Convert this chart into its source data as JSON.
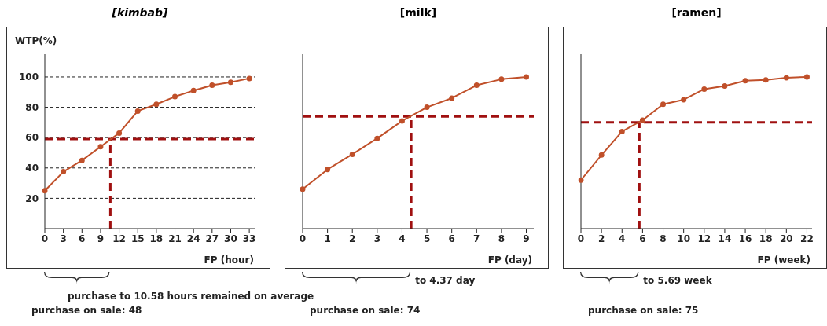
{
  "chart_data": [
    {
      "type": "line",
      "title": "[kimbab]",
      "xlabel": "FP (hour)",
      "ylabel": "WTP(%)",
      "x": [
        0,
        3,
        6,
        9,
        12,
        15,
        18,
        21,
        24,
        27,
        30,
        33
      ],
      "series": [
        {
          "color": "#c0502a",
          "values": [
            25,
            37.5,
            45,
            54,
            63,
            77.5,
            82,
            87,
            91,
            94.5,
            96.5,
            99
          ]
        }
      ],
      "xlim": [
        0,
        34
      ],
      "xticks": [
        0,
        3,
        6,
        9,
        12,
        15,
        18,
        21,
        24,
        27,
        30,
        33
      ],
      "ylim": [
        0,
        115
      ],
      "yticks": [
        20,
        40,
        60,
        80,
        100
      ],
      "grid": "y",
      "marker": "circle",
      "line_style": "solid",
      "ref_lines": [
        {
          "axis": "y",
          "value": 59,
          "color": "#a01010",
          "line_style": "dashed"
        },
        {
          "axis": "x",
          "value": 10.58,
          "color": "#a01010",
          "line_style": "dashed"
        }
      ],
      "annotations": [
        "purchase to 10.58 hours remained on average",
        "purchase on sale: 48"
      ]
    },
    {
      "type": "line",
      "title": "[milk]",
      "xlabel": "FP (day)",
      "x": [
        0,
        1,
        2,
        3,
        4,
        5,
        6,
        7,
        8,
        9
      ],
      "series": [
        {
          "color": "#c0502a",
          "values": [
            26,
            39,
            49,
            59.5,
            71,
            80,
            86,
            94.5,
            98.5,
            100
          ]
        }
      ],
      "xlim": [
        0,
        9.3
      ],
      "xticks": [
        0,
        1,
        2,
        3,
        4,
        5,
        6,
        7,
        8,
        9
      ],
      "ylim": [
        0,
        115
      ],
      "yticks": [
        20,
        40,
        60,
        80,
        100
      ],
      "grid": "y",
      "tick_labels": "x",
      "marker": "circle",
      "line_style": "solid",
      "ref_lines": [
        {
          "axis": "y",
          "value": 74,
          "color": "#a01010",
          "line_style": "dashed"
        },
        {
          "axis": "x",
          "value": 4.37,
          "color": "#a01010",
          "line_style": "dashed"
        }
      ],
      "annotations": [
        "to 4.37 day",
        "purchase on sale: 74"
      ]
    },
    {
      "type": "line",
      "title": "[ramen]",
      "xlabel": "FP (week)",
      "x": [
        0,
        2,
        4,
        6,
        8,
        10,
        12,
        14,
        16,
        18,
        20,
        22
      ],
      "series": [
        {
          "color": "#c0502a",
          "values": [
            32,
            48.5,
            64,
            71.5,
            82,
            85,
            92,
            94,
            97.5,
            98,
            99.5,
            100
          ]
        }
      ],
      "xlim": [
        0,
        22.5
      ],
      "xticks": [
        0,
        2,
        4,
        6,
        8,
        10,
        12,
        14,
        16,
        18,
        20,
        22
      ],
      "ylim": [
        0,
        115
      ],
      "yticks": [
        20,
        40,
        60,
        80,
        100
      ],
      "grid": "y",
      "tick_labels": "x",
      "marker": "circle",
      "line_style": "solid",
      "ref_lines": [
        {
          "axis": "y",
          "value": 70,
          "color": "#a01010",
          "line_style": "dashed"
        },
        {
          "axis": "x",
          "value": 5.69,
          "color": "#a01010",
          "line_style": "dashed"
        }
      ],
      "annotations": [
        "to 5.69 week",
        "purchase on sale: 75"
      ]
    }
  ]
}
